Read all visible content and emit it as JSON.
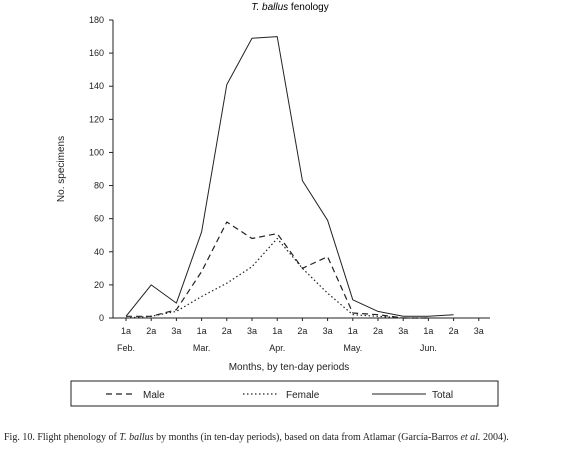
{
  "chart_data": {
    "type": "line",
    "title_prefix": "T. ballus",
    "title_suffix": " fenology",
    "xlabel": "Months, by ten-day periods",
    "ylabel": "No. specimens",
    "ylim": [
      0,
      180
    ],
    "yticks": [
      0,
      20,
      40,
      60,
      80,
      100,
      120,
      140,
      160,
      180
    ],
    "x_periods": [
      "1a",
      "2a",
      "3a",
      "1a",
      "2a",
      "3a",
      "1a",
      "2a",
      "3a",
      "1a",
      "2a",
      "3a",
      "1a",
      "2a",
      "3a"
    ],
    "months": [
      "Feb.",
      "Mar.",
      "Apr.",
      "May.",
      "Jun."
    ],
    "grid": false,
    "legend_position": "bottom",
    "series": [
      {
        "name": "Male",
        "style": "dashed",
        "values": [
          1,
          1,
          5,
          28,
          58,
          48,
          51,
          30,
          37,
          3,
          2,
          0,
          0,
          null,
          null
        ]
      },
      {
        "name": "Female",
        "style": "dotted",
        "values": [
          0,
          1,
          4,
          13,
          21,
          31,
          48,
          30,
          15,
          2,
          1,
          0,
          0,
          null,
          null
        ]
      },
      {
        "name": "Total",
        "style": "solid",
        "values": [
          1,
          20,
          9,
          52,
          141,
          169,
          170,
          83,
          59,
          11,
          4,
          1,
          1,
          2,
          null
        ]
      }
    ]
  },
  "caption": {
    "prefix": "Fig. 10. Flight phenology of ",
    "species": "T. ballus",
    "middle": " by months (in ten-day periods), based on data from Atlamar (García-Barros ",
    "etal": "et al.",
    "end": " 2004)."
  }
}
